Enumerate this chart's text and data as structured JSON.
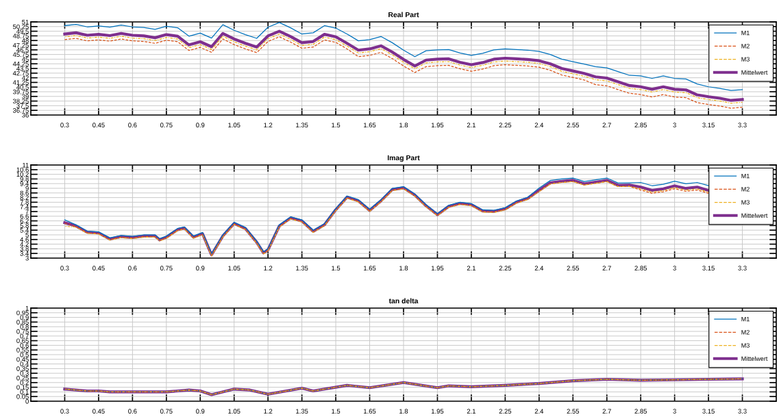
{
  "chart_data": [
    {
      "type": "line",
      "title": "Real Part",
      "grid": true,
      "legend": "top right",
      "x": [
        0.3,
        0.35,
        0.4,
        0.45,
        0.5,
        0.55,
        0.6,
        0.65,
        0.7,
        0.75,
        0.8,
        0.85,
        0.9,
        0.95,
        1.0,
        1.05,
        1.1,
        1.15,
        1.2,
        1.25,
        1.3,
        1.35,
        1.4,
        1.45,
        1.5,
        1.55,
        1.6,
        1.65,
        1.7,
        1.75,
        1.8,
        1.85,
        1.9,
        1.95,
        2.0,
        2.05,
        2.1,
        2.15,
        2.2,
        2.25,
        2.3,
        2.35,
        2.4,
        2.45,
        2.5,
        2.55,
        2.6,
        2.65,
        2.7,
        2.75,
        2.8,
        2.85,
        2.9,
        2.95,
        3.0,
        3.05,
        3.1,
        3.15,
        3.2,
        3.25,
        3.3
      ],
      "xlim": [
        0.15,
        3.45
      ],
      "xticks": [
        0.3,
        0.45,
        0.6,
        0.75,
        0.9,
        1.05,
        1.2,
        1.35,
        1.5,
        1.65,
        1.8,
        1.95,
        2.1,
        2.25,
        2.4,
        2.55,
        2.7,
        2.85,
        3,
        3.15,
        3.3
      ],
      "ylim": [
        36,
        51
      ],
      "yticks": [
        36,
        36.75,
        37.5,
        38.25,
        39,
        39.75,
        40.5,
        41.25,
        42,
        42.75,
        43.5,
        44.25,
        45,
        45.75,
        46.5,
        47.25,
        48,
        48.75,
        49.5,
        50.25,
        51
      ],
      "series": [
        {
          "name": "M1",
          "color": "#0072bd",
          "line_style": "solid",
          "values": [
            50.4,
            50.6,
            50.2,
            50.35,
            50.15,
            50.5,
            50.2,
            50.1,
            49.8,
            50.3,
            50.05,
            48.7,
            49.2,
            48.4,
            50.55,
            49.65,
            48.95,
            48.35,
            50.15,
            50.9,
            50.05,
            49.05,
            49.25,
            50.4,
            50.0,
            49.05,
            47.95,
            48.15,
            48.65,
            47.65,
            46.45,
            45.4,
            46.35,
            46.5,
            46.55,
            46.0,
            45.6,
            45.95,
            46.5,
            46.65,
            46.55,
            46.45,
            46.25,
            45.75,
            45.0,
            44.6,
            44.2,
            43.8,
            43.6,
            43.0,
            42.4,
            42.3,
            41.9,
            42.3,
            41.9,
            41.8,
            41.0,
            40.55,
            40.3,
            39.95,
            40.1
          ]
        },
        {
          "name": "M2",
          "color": "#d95319",
          "line_style": "dashed",
          "values": [
            48.15,
            48.35,
            47.95,
            48.1,
            47.9,
            48.25,
            47.95,
            47.85,
            47.55,
            48.05,
            47.8,
            46.4,
            46.9,
            46.1,
            48.25,
            47.35,
            46.65,
            46.05,
            47.85,
            48.6,
            47.75,
            46.75,
            46.95,
            48.1,
            47.7,
            46.65,
            45.4,
            45.6,
            46.1,
            45.1,
            43.9,
            42.85,
            43.8,
            43.95,
            44.0,
            43.45,
            43.05,
            43.4,
            43.95,
            44.1,
            44.0,
            43.9,
            43.7,
            43.2,
            42.45,
            42.05,
            41.65,
            40.9,
            40.7,
            40.1,
            39.5,
            39.3,
            38.9,
            39.3,
            38.9,
            38.8,
            38.0,
            37.7,
            37.45,
            37.1,
            37.25
          ]
        },
        {
          "name": "M3",
          "color": "#edb120",
          "line_style": "dashdot",
          "values": [
            48.6,
            48.8,
            48.4,
            48.55,
            48.35,
            48.7,
            48.4,
            48.3,
            48.0,
            48.5,
            48.25,
            46.85,
            47.35,
            46.55,
            48.7,
            47.8,
            47.1,
            46.5,
            48.3,
            49.05,
            48.2,
            47.2,
            47.4,
            48.55,
            48.15,
            47.1,
            46.0,
            46.2,
            46.7,
            45.7,
            44.5,
            43.45,
            44.4,
            44.55,
            44.6,
            44.05,
            43.65,
            44.0,
            44.55,
            44.7,
            44.6,
            44.5,
            44.3,
            43.8,
            43.05,
            42.65,
            42.25,
            41.7,
            41.5,
            40.9,
            40.3,
            40.1,
            39.7,
            40.1,
            39.7,
            39.6,
            38.8,
            38.5,
            38.25,
            37.9,
            38.05
          ]
        },
        {
          "name": "Mittelwert",
          "color": "#7e2f8e",
          "line_style": "solid",
          "values": [
            49.05,
            49.25,
            48.85,
            49.0,
            48.8,
            49.15,
            48.85,
            48.75,
            48.45,
            48.95,
            48.7,
            47.3,
            47.8,
            47.0,
            49.15,
            48.25,
            47.55,
            46.95,
            48.75,
            49.5,
            48.65,
            47.65,
            47.85,
            49.0,
            48.6,
            47.55,
            46.45,
            46.65,
            47.15,
            46.15,
            44.95,
            43.9,
            44.85,
            45.0,
            45.05,
            44.5,
            44.1,
            44.45,
            45.0,
            45.15,
            45.05,
            44.95,
            44.75,
            44.25,
            43.5,
            43.1,
            42.7,
            42.15,
            41.95,
            41.35,
            40.75,
            40.55,
            40.15,
            40.55,
            40.15,
            40.05,
            39.25,
            38.95,
            38.7,
            38.35,
            38.5
          ]
        }
      ]
    },
    {
      "type": "line",
      "title": "Imag Part",
      "grid": true,
      "legend": "top right",
      "x": [
        0.3,
        0.35,
        0.4,
        0.45,
        0.5,
        0.55,
        0.6,
        0.65,
        0.7,
        0.72,
        0.75,
        0.8,
        0.83,
        0.87,
        0.91,
        0.95,
        1.0,
        1.05,
        1.1,
        1.15,
        1.18,
        1.2,
        1.25,
        1.3,
        1.35,
        1.4,
        1.45,
        1.5,
        1.55,
        1.6,
        1.65,
        1.7,
        1.75,
        1.8,
        1.85,
        1.9,
        1.95,
        2.0,
        2.05,
        2.1,
        2.15,
        2.2,
        2.25,
        2.3,
        2.35,
        2.4,
        2.45,
        2.5,
        2.55,
        2.6,
        2.65,
        2.7,
        2.75,
        2.8,
        2.85,
        2.9,
        2.95,
        3.0,
        3.05,
        3.1,
        3.15
      ],
      "xlim": [
        0.15,
        3.45
      ],
      "xticks": [
        0.3,
        0.45,
        0.6,
        0.75,
        0.9,
        1.05,
        1.2,
        1.35,
        1.5,
        1.65,
        1.8,
        1.95,
        2.1,
        2.25,
        2.4,
        2.55,
        2.7,
        2.85,
        3,
        3.15,
        3.3
      ],
      "ylim": [
        3,
        11
      ],
      "yticks": [
        3,
        3.4,
        3.8,
        4.2,
        4.6,
        5,
        5.4,
        5.8,
        6.2,
        6.6,
        7,
        7.4,
        7.8,
        8.2,
        8.6,
        9,
        9.4,
        9.8,
        10.2,
        10.6,
        11
      ],
      "series": [
        {
          "name": "M1",
          "color": "#0072bd",
          "line_style": "solid",
          "values": [
            6.29,
            5.86,
            5.32,
            5.26,
            4.74,
            4.95,
            4.87,
            5.0,
            5.0,
            4.67,
            4.89,
            5.55,
            5.68,
            4.9,
            5.2,
            3.38,
            5.0,
            6.08,
            5.64,
            4.46,
            3.55,
            3.81,
            5.86,
            6.55,
            6.29,
            5.4,
            5.97,
            7.26,
            8.34,
            8.02,
            7.2,
            8.02,
            8.99,
            9.14,
            8.51,
            7.59,
            6.83,
            7.54,
            7.8,
            7.69,
            7.15,
            7.11,
            7.33,
            7.91,
            8.23,
            9.02,
            9.67,
            9.8,
            9.88,
            9.58,
            9.73,
            9.88,
            9.45,
            9.47,
            9.5,
            9.22,
            9.35,
            9.61,
            9.39,
            9.5,
            9.22
          ]
        },
        {
          "name": "M2",
          "color": "#d95319",
          "line_style": "dashed",
          "values": [
            5.99,
            5.71,
            5.17,
            5.11,
            4.59,
            4.8,
            4.72,
            4.85,
            4.85,
            4.52,
            4.74,
            5.4,
            5.53,
            4.75,
            5.05,
            3.23,
            4.85,
            5.93,
            5.49,
            4.31,
            3.4,
            3.66,
            5.71,
            6.4,
            6.14,
            5.25,
            5.82,
            7.11,
            8.19,
            7.87,
            7.05,
            7.87,
            8.84,
            8.99,
            8.36,
            7.44,
            6.68,
            7.39,
            7.65,
            7.54,
            7.0,
            6.96,
            7.18,
            7.76,
            8.08,
            8.72,
            9.37,
            9.5,
            9.58,
            9.28,
            9.43,
            9.58,
            9.15,
            9.17,
            8.85,
            8.57,
            8.7,
            8.96,
            8.74,
            8.85,
            8.57
          ]
        },
        {
          "name": "M3",
          "color": "#edb120",
          "line_style": "dashdot",
          "values": [
            5.74,
            5.66,
            5.12,
            5.06,
            4.54,
            4.75,
            4.67,
            4.8,
            4.8,
            4.47,
            4.69,
            5.35,
            5.48,
            4.7,
            5.0,
            3.18,
            4.8,
            5.88,
            5.44,
            4.26,
            3.35,
            3.61,
            5.66,
            6.35,
            6.09,
            5.2,
            5.77,
            7.06,
            8.14,
            7.82,
            7.0,
            7.82,
            8.79,
            8.94,
            8.31,
            7.39,
            6.63,
            7.34,
            7.6,
            7.49,
            6.95,
            6.91,
            7.13,
            7.71,
            8.03,
            8.72,
            9.37,
            9.5,
            9.58,
            9.28,
            9.43,
            9.58,
            9.15,
            9.17,
            8.95,
            8.67,
            8.8,
            9.06,
            8.84,
            8.95,
            8.67
          ]
        },
        {
          "name": "Mittelwert",
          "color": "#7e2f8e",
          "line_style": "solid",
          "values": [
            6.04,
            5.76,
            5.22,
            5.16,
            4.64,
            4.85,
            4.77,
            4.9,
            4.9,
            4.57,
            4.79,
            5.45,
            5.58,
            4.8,
            5.1,
            3.28,
            4.9,
            5.98,
            5.54,
            4.36,
            3.45,
            3.71,
            5.76,
            6.45,
            6.19,
            5.3,
            5.87,
            7.16,
            8.24,
            7.92,
            7.1,
            7.92,
            8.89,
            9.04,
            8.41,
            7.49,
            6.73,
            7.44,
            7.7,
            7.59,
            7.05,
            7.01,
            7.23,
            7.81,
            8.13,
            8.82,
            9.47,
            9.6,
            9.68,
            9.38,
            9.53,
            9.68,
            9.25,
            9.27,
            9.1,
            8.82,
            8.95,
            9.21,
            8.99,
            9.1,
            8.82
          ]
        }
      ]
    },
    {
      "type": "line",
      "title": "tan delta",
      "grid": true,
      "legend": "top right",
      "x": [
        0.3,
        0.4,
        0.45,
        0.5,
        0.6,
        0.7,
        0.75,
        0.85,
        0.9,
        0.95,
        1.05,
        1.12,
        1.2,
        1.35,
        1.4,
        1.55,
        1.65,
        1.8,
        1.95,
        2.0,
        2.1,
        2.25,
        2.4,
        2.55,
        2.7,
        2.85,
        3.0,
        3.15,
        3.3
      ],
      "xlim": [
        0.15,
        3.45
      ],
      "xticks": [
        0.3,
        0.45,
        0.6,
        0.75,
        0.9,
        1.05,
        1.2,
        1.35,
        1.5,
        1.65,
        1.8,
        1.95,
        2.1,
        2.25,
        2.4,
        2.55,
        2.7,
        2.85,
        3,
        3.15,
        3.3
      ],
      "ylim": [
        0,
        1
      ],
      "yticks": [
        0,
        0.05,
        0.1,
        0.15,
        0.2,
        0.25,
        0.3,
        0.35,
        0.4,
        0.45,
        0.5,
        0.55,
        0.6,
        0.65,
        0.7,
        0.75,
        0.8,
        0.85,
        0.9,
        0.95,
        1
      ],
      "series": [
        {
          "name": "M1",
          "color": "#0072bd",
          "line_style": "solid",
          "values": [
            0.13,
            0.11,
            0.11,
            0.1,
            0.1,
            0.1,
            0.1,
            0.12,
            0.11,
            0.07,
            0.13,
            0.12,
            0.075,
            0.14,
            0.11,
            0.17,
            0.145,
            0.2,
            0.145,
            0.165,
            0.155,
            0.17,
            0.19,
            0.22,
            0.235,
            0.225,
            0.23,
            0.235,
            0.24
          ]
        },
        {
          "name": "M2",
          "color": "#d95319",
          "line_style": "dashed",
          "values": [
            0.13,
            0.11,
            0.11,
            0.1,
            0.1,
            0.1,
            0.1,
            0.12,
            0.11,
            0.07,
            0.13,
            0.12,
            0.075,
            0.14,
            0.11,
            0.17,
            0.145,
            0.2,
            0.145,
            0.165,
            0.155,
            0.17,
            0.19,
            0.22,
            0.235,
            0.225,
            0.23,
            0.235,
            0.24
          ]
        },
        {
          "name": "M3",
          "color": "#edb120",
          "line_style": "dashdot",
          "values": [
            0.13,
            0.11,
            0.11,
            0.1,
            0.1,
            0.1,
            0.1,
            0.12,
            0.11,
            0.07,
            0.13,
            0.12,
            0.075,
            0.14,
            0.11,
            0.17,
            0.145,
            0.2,
            0.145,
            0.165,
            0.155,
            0.17,
            0.19,
            0.22,
            0.235,
            0.225,
            0.23,
            0.235,
            0.24
          ]
        },
        {
          "name": "Mittelwert",
          "color": "#7e2f8e",
          "line_style": "solid",
          "values": [
            0.13,
            0.11,
            0.11,
            0.1,
            0.1,
            0.1,
            0.1,
            0.12,
            0.11,
            0.07,
            0.13,
            0.12,
            0.075,
            0.14,
            0.11,
            0.17,
            0.145,
            0.2,
            0.145,
            0.165,
            0.155,
            0.17,
            0.19,
            0.22,
            0.235,
            0.225,
            0.23,
            0.235,
            0.24
          ]
        }
      ]
    }
  ]
}
